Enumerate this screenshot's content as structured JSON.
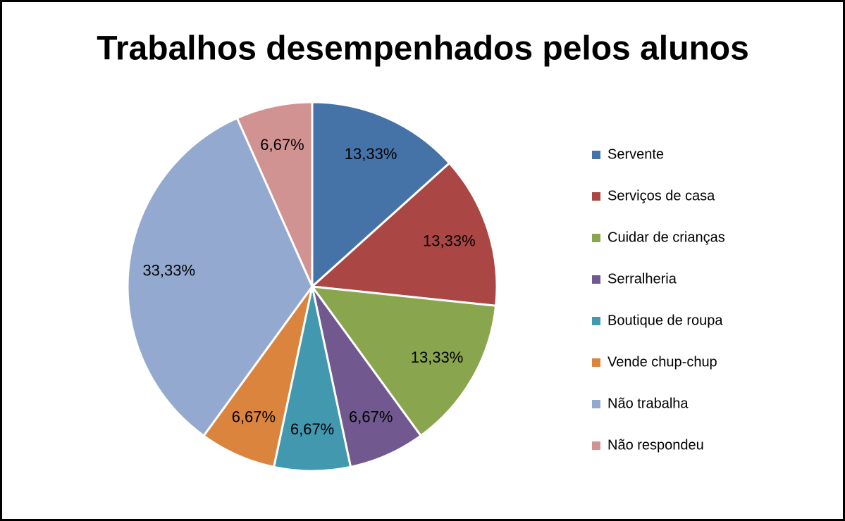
{
  "chart_data": {
    "type": "pie",
    "title": "Trabalhos desempenhados pelos alunos",
    "categories": [
      "Servente",
      "Serviços de casa",
      "Cuidar de crianças",
      "Serralheria",
      "Boutique de roupa",
      "Vende chup-chup",
      "Não  trabalha",
      "Não respondeu"
    ],
    "values": [
      13.33,
      13.33,
      13.33,
      6.67,
      6.67,
      6.67,
      33.33,
      6.67
    ],
    "value_labels": [
      "13,33%",
      "13,33%",
      "13,33%",
      "6,67%",
      "6,67%",
      "6,67%",
      "33,33%",
      "6,67%"
    ],
    "colors": [
      "#4572a7",
      "#aa4643",
      "#89a54e",
      "#71588f",
      "#4198af",
      "#db843d",
      "#93a9cf",
      "#d19392"
    ],
    "legend": "right"
  }
}
